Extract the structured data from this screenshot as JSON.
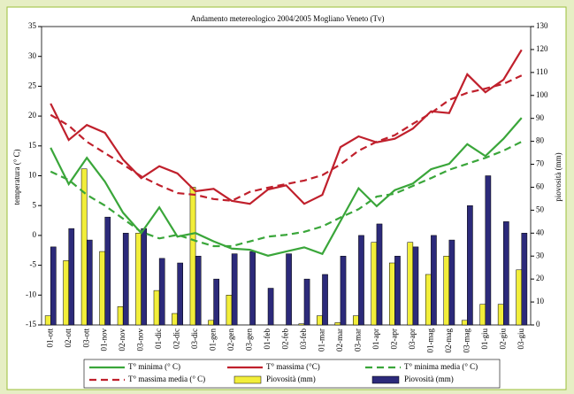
{
  "chart_data": {
    "type": "combo",
    "title": "Andamento metereologico 2004/2005 Mogliano Veneto (Tv)",
    "y_label": "temperatura (° C)",
    "y2_label": "piovosità (mm)",
    "categories": [
      "01-ott",
      "02-ott",
      "03-ott",
      "01-nov",
      "02-nov",
      "03-nov",
      "01-dic",
      "02-dic",
      "03-dic",
      "01-gen",
      "02-gen",
      "03-gen",
      "01-feb",
      "02-feb",
      "03-feb",
      "01-mar",
      "02-mar",
      "03-mar",
      "01-apr",
      "02-apr",
      "03-apr",
      "01-mag",
      "02-mag",
      "03-mag",
      "01-giu",
      "02-giu",
      "03-giu"
    ],
    "ylim": [
      -15,
      35
    ],
    "yticks": [
      -15,
      -10,
      -5,
      0,
      5,
      10,
      15,
      20,
      25,
      30,
      35
    ],
    "y2lim": [
      0,
      130
    ],
    "y2ticks": [
      0,
      10,
      20,
      30,
      40,
      50,
      60,
      70,
      80,
      90,
      100,
      110,
      120,
      130
    ],
    "legend": "bottom",
    "series": [
      {
        "name": "T° minima (° C)",
        "type": "line",
        "dash": false,
        "color": "#3aa63a",
        "values": [
          14.7,
          8.6,
          13,
          9,
          3.8,
          0.4,
          4.7,
          -0.2,
          0.4,
          -1,
          -2.2,
          -2.4,
          -3.4,
          -2.7,
          -2,
          -3.1,
          2.4,
          7.9,
          4.9,
          7.6,
          8.7,
          11.1,
          12,
          15.3,
          13.3,
          16.2,
          19.7
        ]
      },
      {
        "name": "T° massima (°C)",
        "type": "line",
        "dash": false,
        "color": "#c0202c",
        "values": [
          22.1,
          16,
          18.5,
          17.2,
          12.7,
          9.6,
          11.6,
          10.4,
          7.4,
          7.8,
          5.8,
          5.3,
          7.7,
          8.4,
          5.3,
          6.8,
          14.8,
          16.6,
          15.6,
          16.2,
          17.9,
          20.8,
          20.5,
          27,
          24,
          26.1,
          31.1
        ]
      },
      {
        "name": "T° minima media (° C)",
        "type": "line",
        "dash": true,
        "color": "#3aa63a",
        "values": [
          10.7,
          9.3,
          6.8,
          5,
          2.8,
          0.6,
          -0.5,
          0.1,
          -0.9,
          -1.8,
          -1.8,
          -1,
          -0.2,
          0.1,
          0.6,
          1.5,
          3,
          4.4,
          6.5,
          7,
          8.3,
          9.6,
          11,
          12,
          13,
          14.2,
          15.7
        ]
      },
      {
        "name": "T° massima media (° C)",
        "type": "line",
        "dash": true,
        "color": "#c0202c",
        "values": [
          20.2,
          18.4,
          15.7,
          13.8,
          11.9,
          9.9,
          8.4,
          7.1,
          6.8,
          6.1,
          5.8,
          7.3,
          8,
          8.6,
          9.2,
          10.1,
          11.9,
          14.2,
          15.7,
          16.8,
          18.7,
          20.5,
          22.7,
          23.9,
          24.6,
          25.4,
          26.8
        ]
      },
      {
        "name": "Piovosità (mm)",
        "type": "bar",
        "axis": "y2",
        "color": "#f2ee3a",
        "values": [
          4,
          28,
          68,
          32,
          8,
          40,
          15,
          5,
          60,
          2,
          13,
          0,
          0,
          0,
          0.5,
          4,
          1,
          4,
          36,
          27,
          36,
          22,
          30,
          2,
          9,
          9,
          24
        ]
      },
      {
        "name": "Piovosità (mm)",
        "type": "bar",
        "axis": "y2",
        "color": "#2c2a7a",
        "values": [
          34,
          42,
          37,
          47,
          40,
          42,
          29,
          27,
          30,
          20,
          31,
          32,
          16,
          31,
          20,
          22,
          30,
          39,
          44,
          30,
          34,
          39,
          37,
          52,
          65,
          45,
          40
        ]
      }
    ]
  }
}
